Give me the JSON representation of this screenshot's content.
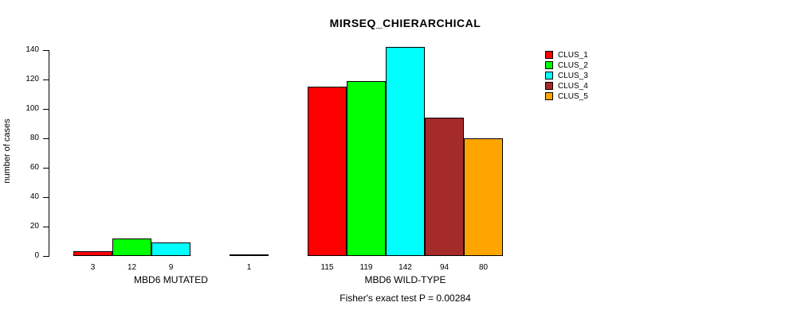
{
  "title": "MIRSEQ_CHIERARCHICAL",
  "subtitle": "Fisher's exact test P = 0.00284",
  "y_axis": {
    "label": "number of cases",
    "ticks": [
      0,
      20,
      40,
      60,
      80,
      100,
      120,
      140
    ]
  },
  "legend": {
    "entries": [
      {
        "label": "CLUS_1",
        "color": "#FF0000"
      },
      {
        "label": "CLUS_2",
        "color": "#00FF00"
      },
      {
        "label": "CLUS_3",
        "color": "#00FFFF"
      },
      {
        "label": "CLUS_4",
        "color": "#A52A2A"
      },
      {
        "label": "CLUS_5",
        "color": "#FFA500"
      }
    ]
  },
  "chart_data": {
    "type": "bar",
    "grouped": true,
    "title": "MIRSEQ_CHIERARCHICAL",
    "xlabel": "",
    "ylabel": "number of cases",
    "ylim": [
      0,
      140
    ],
    "grid": false,
    "legend_position": "top-right",
    "categories": [
      "MBD6 MUTATED",
      "MBD6 WILD-TYPE"
    ],
    "series": [
      {
        "name": "CLUS_1",
        "color": "#FF0000",
        "values": [
          3,
          115
        ]
      },
      {
        "name": "CLUS_2",
        "color": "#00FF00",
        "values": [
          12,
          119
        ]
      },
      {
        "name": "CLUS_3",
        "color": "#00FFFF",
        "values": [
          9,
          142
        ]
      },
      {
        "name": "CLUS_4",
        "color": "#A52A2A",
        "values": [
          0,
          94
        ]
      },
      {
        "name": "CLUS_5",
        "color": "#FFA500",
        "values": [
          1,
          80
        ]
      }
    ],
    "bar_value_labels": [
      [
        "3",
        "12",
        "9",
        "",
        "1"
      ],
      [
        "115",
        "119",
        "142",
        "94",
        "80"
      ]
    ],
    "annotation": "Fisher's exact test P = 0.00284"
  }
}
